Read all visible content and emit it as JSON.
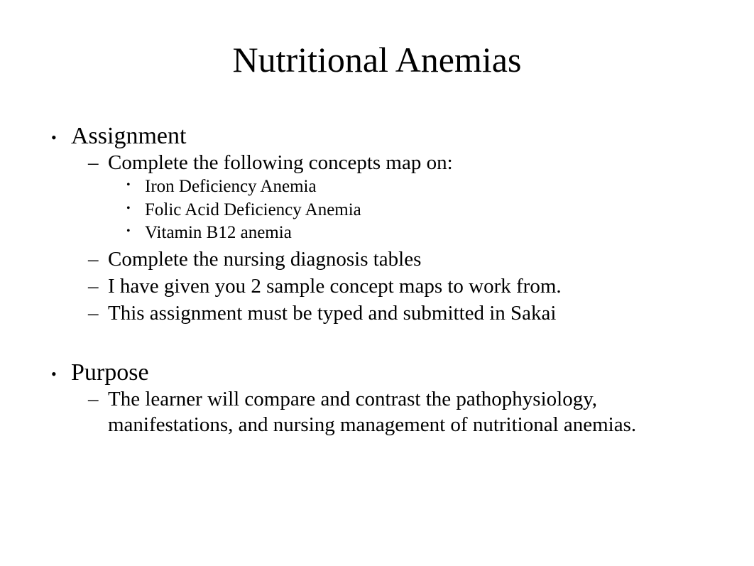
{
  "title": "Nutritional Anemias",
  "sections": {
    "assignment": {
      "heading": "Assignment",
      "items": {
        "concepts_map": {
          "text": "Complete the following concepts map on:",
          "subitems": {
            "iron": "Iron Deficiency Anemia",
            "folic": "Folic Acid Deficiency Anemia",
            "b12": "Vitamin B12 anemia"
          }
        },
        "tables": "Complete the nursing diagnosis tables",
        "samples": "I have given you 2 sample concept maps to work from.",
        "submit": "This assignment must be typed and submitted in Sakai"
      }
    },
    "purpose": {
      "heading": "Purpose",
      "items": {
        "learner": "The learner will compare and contrast the pathophysiology, manifestations, and nursing management of nutritional anemias."
      }
    }
  },
  "style": {
    "background_color": "#ffffff",
    "text_color": "#000000",
    "font_family": "Times New Roman",
    "title_fontsize": 50,
    "level1_fontsize": 34,
    "level2_fontsize": 29,
    "level3_fontsize": 25,
    "bullet_level1": "disc",
    "bullet_level2": "dash",
    "bullet_level3": "disc"
  }
}
